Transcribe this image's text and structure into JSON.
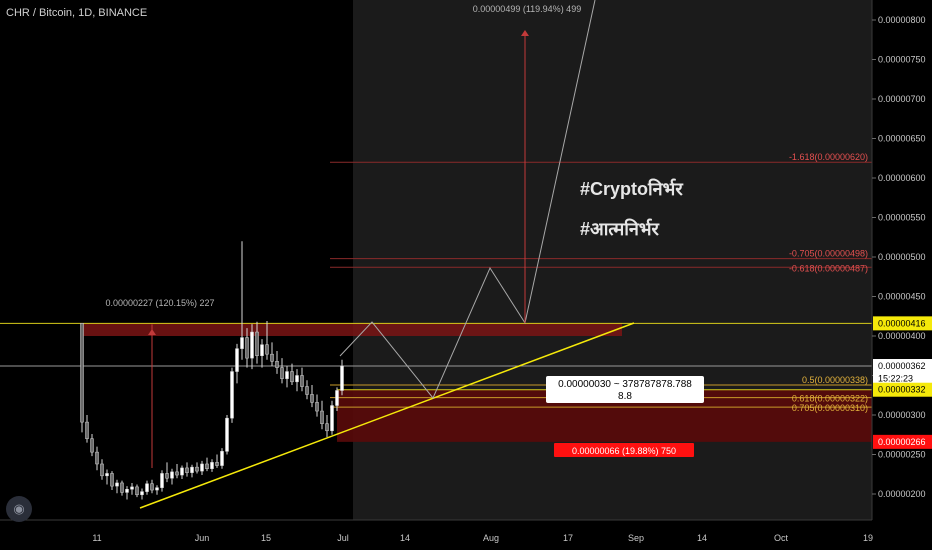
{
  "header": {
    "symbol_title": "CHR / Bitcoin, 1D, BINANCE"
  },
  "overlay_text": {
    "line1": "#Cryptoनिर्भर",
    "line2": "#आत्मनिर्भर"
  },
  "chart_data": {
    "type": "candlestick",
    "x_ticks": [
      "11",
      "Jun",
      "15",
      "Jul",
      "14",
      "Aug",
      "17",
      "Sep",
      "14",
      "Oct",
      "19"
    ],
    "y_ticks": [
      "0.00000800",
      "0.00000750",
      "0.00000700",
      "0.00000650",
      "0.00000600",
      "0.00000550",
      "0.00000500",
      "0.00000450",
      "0.00000400",
      "0.00000350",
      "0.00000300",
      "0.00000250",
      "0.00000200"
    ],
    "ylim": [
      1.7e-06,
      8.2e-06
    ],
    "price_tags": [
      {
        "label": "0.00000416",
        "value": 4.16e-06,
        "bg": "#f5e90a",
        "fg": "#000000"
      },
      {
        "label": "0.00000362",
        "value": 3.62e-06,
        "bg": "#ffffff",
        "fg": "#000000"
      },
      {
        "label": "15:22:23",
        "value": 3.46e-06,
        "bg": "#ffffff",
        "fg": "#000000"
      },
      {
        "label": "0.00000332",
        "value": 3.32e-06,
        "bg": "#f5e90a",
        "fg": "#000000"
      },
      {
        "label": "0.00000266",
        "value": 2.66e-06,
        "bg": "#ff1010",
        "fg": "#ffffff"
      }
    ],
    "fib_levels": [
      {
        "label": "-1.618(0.00000620)",
        "value": 6.2e-06
      },
      {
        "label": "-0.705(0.00000498)",
        "value": 4.98e-06
      },
      {
        "label": "-0.618(0.00000487)",
        "value": 4.87e-06
      },
      {
        "label": "0.5(0.00000338)",
        "value": 3.38e-06
      },
      {
        "label": "0.618(0.00000322)",
        "value": 3.22e-06
      },
      {
        "label": "0.705(0.00000310)",
        "value": 3.1e-06
      }
    ],
    "measure_up_label": "0.00000227 (120.15%) 227",
    "measure_target_label": "0.00000499 (119.94%) 499",
    "measure_down_label": "0.00000066 (19.88%) 750",
    "tooltip_label": "0.00000030 ~ 378787878.788",
    "tooltip_sub": "8.8",
    "candles_ohlc": [
      [
        4.16e-06,
        3.01e-06,
        2.78e-06,
        2.91e-06
      ],
      [
        2.91e-06,
        3e-06,
        2.65e-06,
        2.7e-06
      ],
      [
        2.7e-06,
        2.76e-06,
        2.48e-06,
        2.53e-06
      ],
      [
        2.53e-06,
        2.6e-06,
        2.3e-06,
        2.38e-06
      ],
      [
        2.38e-06,
        2.44e-06,
        2.18e-06,
        2.23e-06
      ],
      [
        2.23e-06,
        2.31e-06,
        2.12e-06,
        2.26e-06
      ],
      [
        2.26e-06,
        2.29e-06,
        2.05e-06,
        2.1e-06
      ],
      [
        2.1e-06,
        2.18e-06,
        2.01e-06,
        2.14e-06
      ],
      [
        2.14e-06,
        2.17e-06,
        1.98e-06,
        2.02e-06
      ],
      [
        2.02e-06,
        2.1e-06,
        1.93e-06,
        2.06e-06
      ],
      [
        2.06e-06,
        2.14e-06,
        1.99e-06,
        2.09e-06
      ],
      [
        2.09e-06,
        2.12e-06,
        1.96e-06,
        1.99e-06
      ],
      [
        1.99e-06,
        2.07e-06,
        1.93e-06,
        2.03e-06
      ],
      [
        2.03e-06,
        2.17e-06,
        1.99e-06,
        2.13e-06
      ],
      [
        2.13e-06,
        2.18e-06,
        2.01e-06,
        2.05e-06
      ],
      [
        2.05e-06,
        2.11e-06,
        1.99e-06,
        2.08e-06
      ],
      [
        2.08e-06,
        2.3e-06,
        2.03e-06,
        2.26e-06
      ],
      [
        2.26e-06,
        2.4e-06,
        2.15e-06,
        2.2e-06
      ],
      [
        2.2e-06,
        2.32e-06,
        2.12e-06,
        2.28e-06
      ],
      [
        2.28e-06,
        2.38e-06,
        2.2e-06,
        2.24e-06
      ],
      [
        2.24e-06,
        2.36e-06,
        2.19e-06,
        2.33e-06
      ],
      [
        2.33e-06,
        2.4e-06,
        2.22e-06,
        2.27e-06
      ],
      [
        2.27e-06,
        2.37e-06,
        2.21e-06,
        2.34e-06
      ],
      [
        2.34e-06,
        2.4e-06,
        2.26e-06,
        2.29e-06
      ],
      [
        2.29e-06,
        2.42e-06,
        2.24e-06,
        2.38e-06
      ],
      [
        2.38e-06,
        2.46e-06,
        2.29e-06,
        2.32e-06
      ],
      [
        2.32e-06,
        2.44e-06,
        2.28e-06,
        2.4e-06
      ],
      [
        2.4e-06,
        2.5e-06,
        2.33e-06,
        2.36e-06
      ],
      [
        2.36e-06,
        2.58e-06,
        2.32e-06,
        2.54e-06
      ],
      [
        2.54e-06,
        3e-06,
        2.5e-06,
        2.96e-06
      ],
      [
        2.96e-06,
        3.6e-06,
        2.9e-06,
        3.55e-06
      ],
      [
        3.55e-06,
        3.9e-06,
        3.4e-06,
        3.84e-06
      ],
      [
        3.84e-06,
        5.2e-06,
        3.7e-06,
        3.98e-06
      ],
      [
        3.98e-06,
        4.1e-06,
        3.6e-06,
        3.72e-06
      ],
      [
        3.72e-06,
        4.15e-06,
        3.58e-06,
        4.05e-06
      ],
      [
        4.05e-06,
        4.18e-06,
        3.65e-06,
        3.75e-06
      ],
      [
        3.75e-06,
        3.96e-06,
        3.6e-06,
        3.89e-06
      ],
      [
        3.89e-06,
        4.19e-06,
        3.7e-06,
        3.77e-06
      ],
      [
        3.77e-06,
        3.92e-06,
        3.62e-06,
        3.68e-06
      ],
      [
        3.68e-06,
        3.81e-06,
        3.52e-06,
        3.6e-06
      ],
      [
        3.6e-06,
        3.72e-06,
        3.4e-06,
        3.46e-06
      ],
      [
        3.46e-06,
        3.62e-06,
        3.35e-06,
        3.55e-06
      ],
      [
        3.55e-06,
        3.65e-06,
        3.38e-06,
        3.42e-06
      ],
      [
        3.42e-06,
        3.58e-06,
        3.3e-06,
        3.5e-06
      ],
      [
        3.5e-06,
        3.6e-06,
        3.3e-06,
        3.36e-06
      ],
      [
        3.36e-06,
        3.44e-06,
        3.2e-06,
        3.26e-06
      ],
      [
        3.26e-06,
        3.38e-06,
        3.1e-06,
        3.16e-06
      ],
      [
        3.16e-06,
        3.26e-06,
        2.98e-06,
        3.05e-06
      ],
      [
        3.05e-06,
        3.18e-06,
        2.82e-06,
        2.89e-06
      ],
      [
        2.89e-06,
        3e-06,
        2.72e-06,
        2.8e-06
      ],
      [
        2.8e-06,
        3.18e-06,
        2.75e-06,
        3.12e-06
      ],
      [
        3.12e-06,
        3.35e-06,
        3.05e-06,
        3.31e-06
      ],
      [
        3.31e-06,
        3.7e-06,
        3.25e-06,
        3.62e-06
      ]
    ]
  }
}
